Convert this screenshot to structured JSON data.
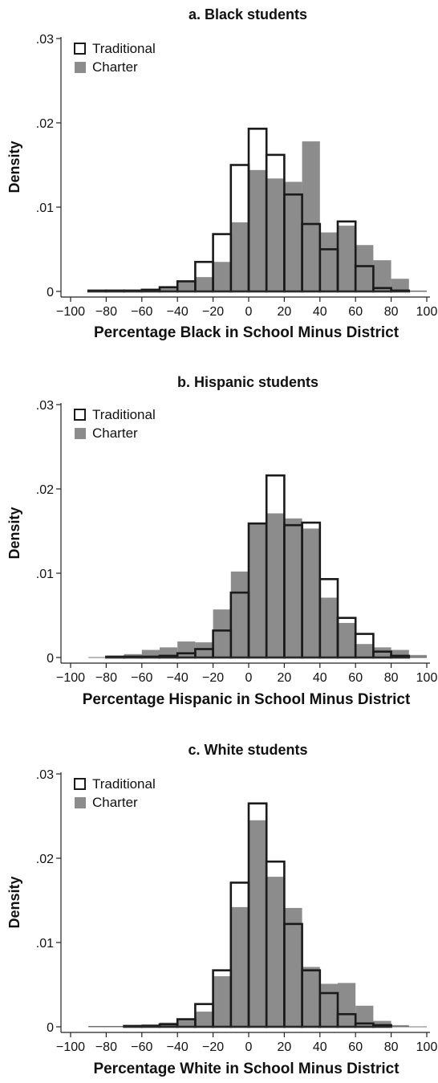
{
  "colors": {
    "charter_fill": "#8c8c8c",
    "traditional_stroke": "#1a1a1a",
    "axis": "#222222"
  },
  "chart_data": [
    {
      "type": "histogram",
      "title": "a. Black students",
      "xlabel": "Percentage Black in School Minus District",
      "ylabel": "Density",
      "xlim": [
        -100,
        100
      ],
      "ylim": [
        0,
        0.03
      ],
      "xticks": [
        "−100",
        "−80",
        "−60",
        "−40",
        "−20",
        "0",
        "20",
        "40",
        "60",
        "80",
        "100"
      ],
      "xtick_values": [
        -100,
        -80,
        -60,
        -40,
        -20,
        0,
        20,
        40,
        60,
        80,
        100
      ],
      "yticks": [
        "0",
        ".01",
        ".02",
        ".03"
      ],
      "ytick_values": [
        0,
        0.01,
        0.02,
        0.03
      ],
      "legend": {
        "position": "top-left",
        "entries": [
          "Traditional",
          "Charter"
        ]
      },
      "series": [
        {
          "name": "Traditional",
          "style": "outline",
          "bins": [
            [
              -90,
              -80,
              0.0001
            ],
            [
              -80,
              -70,
              0.0001
            ],
            [
              -70,
              -60,
              0.0001
            ],
            [
              -60,
              -50,
              0.0002
            ],
            [
              -50,
              -40,
              0.0005
            ],
            [
              -40,
              -30,
              0.0012
            ],
            [
              -30,
              -20,
              0.0035
            ],
            [
              -20,
              -10,
              0.0068
            ],
            [
              -10,
              0,
              0.015
            ],
            [
              0,
              10,
              0.0193
            ],
            [
              10,
              20,
              0.0162
            ],
            [
              20,
              30,
              0.0115
            ],
            [
              30,
              40,
              0.008
            ],
            [
              40,
              50,
              0.005
            ],
            [
              50,
              60,
              0.0083
            ],
            [
              60,
              70,
              0.003
            ],
            [
              70,
              80,
              0.0004
            ],
            [
              80,
              90,
              0.0001
            ]
          ]
        },
        {
          "name": "Charter",
          "style": "filled",
          "bins": [
            [
              -90,
              -80,
              0.0001
            ],
            [
              -80,
              -70,
              0.0002
            ],
            [
              -70,
              -60,
              0.0002
            ],
            [
              -60,
              -50,
              0.0003
            ],
            [
              -50,
              -40,
              0.0006
            ],
            [
              -40,
              -30,
              0.0012
            ],
            [
              -30,
              -20,
              0.0017
            ],
            [
              -20,
              -10,
              0.0035
            ],
            [
              -10,
              0,
              0.0082
            ],
            [
              0,
              10,
              0.0144
            ],
            [
              10,
              20,
              0.0134
            ],
            [
              20,
              30,
              0.013
            ],
            [
              30,
              40,
              0.0178
            ],
            [
              40,
              50,
              0.007
            ],
            [
              50,
              60,
              0.0078
            ],
            [
              60,
              70,
              0.0055
            ],
            [
              70,
              80,
              0.0037
            ],
            [
              80,
              90,
              0.0015
            ],
            [
              90,
              100,
              0.0001
            ]
          ]
        }
      ]
    },
    {
      "type": "histogram",
      "title": "b. Hispanic students",
      "xlabel": "Percentage Hispanic in School Minus District",
      "ylabel": "Density",
      "xlim": [
        -100,
        100
      ],
      "ylim": [
        0,
        0.03
      ],
      "xticks": [
        "−100",
        "−80",
        "−60",
        "−40",
        "−20",
        "0",
        "20",
        "40",
        "60",
        "80",
        "100"
      ],
      "xtick_values": [
        -100,
        -80,
        -60,
        -40,
        -20,
        0,
        20,
        40,
        60,
        80,
        100
      ],
      "yticks": [
        "0",
        ".01",
        ".02",
        ".03"
      ],
      "ytick_values": [
        0,
        0.01,
        0.02,
        0.03
      ],
      "legend": {
        "position": "top-left",
        "entries": [
          "Traditional",
          "Charter"
        ]
      },
      "series": [
        {
          "name": "Traditional",
          "style": "outline",
          "bins": [
            [
              -80,
              -70,
              0.0001
            ],
            [
              -70,
              -60,
              0.0001
            ],
            [
              -60,
              -50,
              0.0001
            ],
            [
              -50,
              -40,
              0.0002
            ],
            [
              -40,
              -30,
              0.0005
            ],
            [
              -30,
              -20,
              0.001
            ],
            [
              -20,
              -10,
              0.0032
            ],
            [
              -10,
              0,
              0.0077
            ],
            [
              0,
              10,
              0.0159
            ],
            [
              10,
              20,
              0.0216
            ],
            [
              20,
              30,
              0.0157
            ],
            [
              30,
              40,
              0.016
            ],
            [
              40,
              50,
              0.0093
            ],
            [
              50,
              60,
              0.0047
            ],
            [
              60,
              70,
              0.0028
            ],
            [
              70,
              80,
              0.0007
            ],
            [
              80,
              90,
              0.0002
            ]
          ]
        },
        {
          "name": "Charter",
          "style": "filled",
          "bins": [
            [
              -80,
              -70,
              0.0002
            ],
            [
              -70,
              -60,
              0.0004
            ],
            [
              -60,
              -50,
              0.0009
            ],
            [
              -50,
              -40,
              0.0012
            ],
            [
              -40,
              -30,
              0.0019
            ],
            [
              -30,
              -20,
              0.0018
            ],
            [
              -20,
              -10,
              0.0057
            ],
            [
              -10,
              0,
              0.0102
            ],
            [
              0,
              10,
              0.016
            ],
            [
              10,
              20,
              0.0171
            ],
            [
              20,
              30,
              0.0165
            ],
            [
              30,
              40,
              0.0153
            ],
            [
              40,
              50,
              0.0071
            ],
            [
              50,
              60,
              0.0041
            ],
            [
              60,
              70,
              0.0016
            ],
            [
              70,
              80,
              0.0012
            ],
            [
              80,
              90,
              0.0009
            ],
            [
              90,
              100,
              0.0003
            ]
          ]
        }
      ]
    },
    {
      "type": "histogram",
      "title": "c. White students",
      "xlabel": "Percentage White in School Minus District",
      "ylabel": "Density",
      "xlim": [
        -100,
        100
      ],
      "ylim": [
        0,
        0.03
      ],
      "xticks": [
        "−100",
        "−80",
        "−60",
        "−40",
        "−20",
        "0",
        "20",
        "40",
        "60",
        "80",
        "100"
      ],
      "xtick_values": [
        -100,
        -80,
        -60,
        -40,
        -20,
        0,
        20,
        40,
        60,
        80,
        100
      ],
      "yticks": [
        "0",
        ".01",
        ".02",
        ".03"
      ],
      "ytick_values": [
        0,
        0.01,
        0.02,
        0.03
      ],
      "legend": {
        "position": "top-left",
        "entries": [
          "Traditional",
          "Charter"
        ]
      },
      "series": [
        {
          "name": "Traditional",
          "style": "outline",
          "bins": [
            [
              -70,
              -60,
              0.0001
            ],
            [
              -60,
              -50,
              0.0001
            ],
            [
              -50,
              -40,
              0.0003
            ],
            [
              -40,
              -30,
              0.0009
            ],
            [
              -30,
              -20,
              0.0027
            ],
            [
              -20,
              -10,
              0.0067
            ],
            [
              -10,
              0,
              0.0171
            ],
            [
              0,
              10,
              0.0265
            ],
            [
              10,
              20,
              0.0196
            ],
            [
              20,
              30,
              0.0122
            ],
            [
              30,
              40,
              0.0067
            ],
            [
              40,
              50,
              0.004
            ],
            [
              50,
              60,
              0.0015
            ],
            [
              60,
              70,
              0.0004
            ],
            [
              70,
              80,
              0.0002
            ]
          ]
        },
        {
          "name": "Charter",
          "style": "filled",
          "bins": [
            [
              -90,
              -80,
              0.0001
            ],
            [
              -80,
              -70,
              0.0001
            ],
            [
              -70,
              -60,
              0.0002
            ],
            [
              -60,
              -50,
              0.0003
            ],
            [
              -50,
              -40,
              0.0005
            ],
            [
              -40,
              -30,
              0.0009
            ],
            [
              -30,
              -20,
              0.0018
            ],
            [
              -20,
              -10,
              0.006
            ],
            [
              -10,
              0,
              0.0142
            ],
            [
              0,
              10,
              0.0245
            ],
            [
              10,
              20,
              0.0178
            ],
            [
              20,
              30,
              0.0141
            ],
            [
              30,
              40,
              0.0071
            ],
            [
              40,
              50,
              0.0051
            ],
            [
              50,
              60,
              0.0052
            ],
            [
              60,
              70,
              0.0025
            ],
            [
              70,
              80,
              0.0007
            ],
            [
              80,
              90,
              0.0002
            ]
          ]
        }
      ]
    }
  ]
}
